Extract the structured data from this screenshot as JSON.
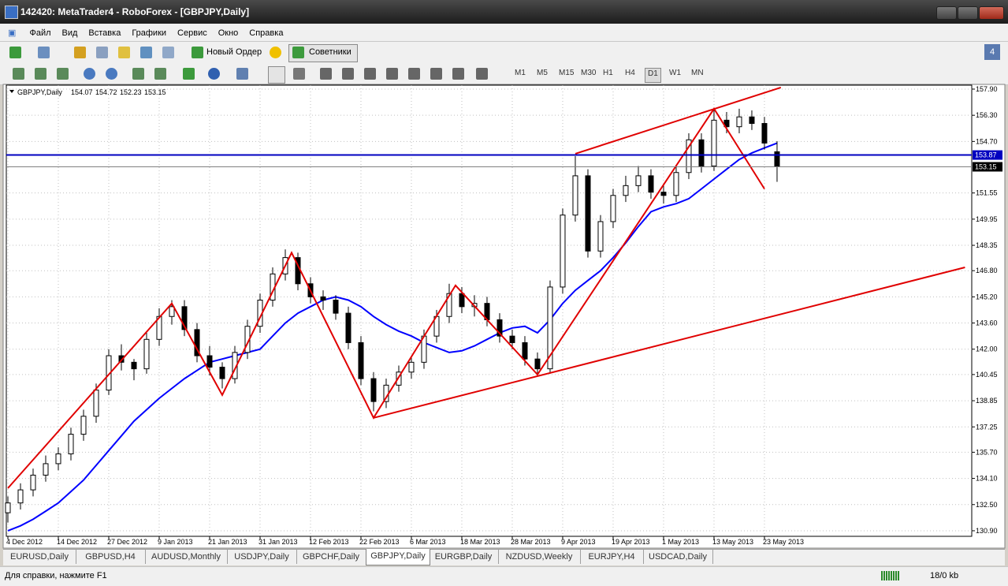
{
  "window": {
    "title": "142420: MetaTrader4 - RoboForex - [GBPJPY,Daily]"
  },
  "menu": [
    "Файл",
    "Вид",
    "Вставка",
    "Графики",
    "Сервис",
    "Окно",
    "Справка"
  ],
  "toolbar": {
    "new_order": "Новый Ордер",
    "experts": "Советники",
    "timeframes": [
      "M1",
      "M5",
      "M15",
      "M30",
      "H1",
      "H4",
      "D1",
      "W1",
      "MN"
    ],
    "active_timeframe": 6
  },
  "chart_data": {
    "type": "candlestick",
    "symbol": "GBPJPY,Daily",
    "categories": [
      "4 Dec 2012",
      null,
      null,
      null,
      "14 Dec 2012",
      null,
      null,
      null,
      "27 Dec 2012",
      null,
      null,
      null,
      "9 Jan 2013",
      null,
      null,
      null,
      "21 Jan 2013",
      null,
      null,
      null,
      "31 Jan 2013",
      null,
      null,
      null,
      "12 Feb 2013",
      null,
      null,
      null,
      "22 Feb 2013",
      null,
      null,
      null,
      "6 Mar 2013",
      null,
      null,
      null,
      "18 Mar 2013",
      null,
      null,
      null,
      "28 Mar 2013",
      null,
      null,
      null,
      "9 Apr 2013",
      null,
      null,
      null,
      "19 Apr 2013",
      null,
      null,
      null,
      "1 May 2013",
      null,
      null,
      null,
      "13 May 2013",
      null,
      null,
      null,
      "23 May 2013",
      null
    ],
    "open": [
      132.0,
      132.6,
      133.4,
      134.3,
      135.0,
      135.6,
      136.8,
      137.9,
      139.5,
      141.6,
      141.2,
      140.8,
      142.6,
      144.0,
      144.6,
      143.2,
      141.6,
      140.9,
      140.2,
      141.8,
      143.4,
      145.0,
      146.6,
      147.6,
      146.0,
      145.2,
      145.0,
      144.2,
      142.4,
      140.2,
      138.8,
      139.8,
      140.6,
      141.2,
      142.8,
      144.0,
      145.4,
      144.6,
      144.8,
      143.8,
      142.8,
      142.4,
      141.4,
      140.8,
      145.8,
      150.2,
      152.6,
      148.0,
      149.8,
      151.4,
      152.0,
      152.6,
      151.6,
      151.4,
      152.8,
      154.8,
      153.2,
      156.0,
      155.6,
      156.2,
      155.8,
      154.07
    ],
    "high": [
      133.0,
      133.8,
      134.7,
      135.5,
      136.0,
      137.2,
      138.3,
      139.9,
      142.0,
      142.3,
      141.4,
      143.0,
      144.5,
      145.0,
      145.0,
      143.6,
      142.2,
      141.2,
      142.2,
      143.8,
      145.4,
      147.0,
      148.1,
      147.9,
      146.4,
      145.6,
      145.3,
      144.6,
      142.8,
      140.6,
      140.2,
      141.0,
      141.6,
      143.2,
      144.4,
      146.0,
      145.8,
      145.3,
      145.2,
      144.2,
      143.2,
      142.8,
      141.8,
      146.2,
      150.6,
      153.8,
      153.0,
      150.2,
      151.8,
      152.6,
      153.2,
      153.0,
      152.0,
      153.2,
      155.2,
      155.2,
      156.6,
      156.5,
      156.7,
      156.6,
      156.2,
      154.72
    ],
    "low": [
      131.4,
      132.2,
      133.0,
      133.9,
      134.6,
      135.2,
      136.4,
      137.5,
      139.2,
      140.7,
      140.1,
      140.5,
      142.2,
      143.5,
      142.8,
      141.2,
      140.4,
      139.6,
      139.9,
      141.4,
      143.0,
      144.6,
      146.2,
      145.6,
      144.8,
      144.4,
      143.8,
      142.0,
      139.8,
      138.2,
      138.4,
      139.4,
      140.2,
      140.8,
      142.4,
      143.6,
      144.2,
      144.0,
      143.4,
      142.4,
      142.0,
      141.0,
      140.4,
      140.5,
      145.4,
      149.8,
      147.6,
      147.6,
      149.4,
      151.0,
      151.6,
      151.2,
      150.9,
      151.0,
      152.4,
      152.8,
      152.9,
      155.2,
      155.2,
      155.4,
      154.2,
      152.23
    ],
    "close": [
      132.6,
      133.4,
      134.3,
      135.0,
      135.6,
      136.8,
      137.9,
      139.5,
      141.6,
      141.2,
      140.8,
      142.6,
      144.0,
      144.6,
      143.2,
      141.6,
      140.9,
      140.2,
      141.8,
      143.4,
      145.0,
      146.6,
      147.6,
      146.0,
      145.2,
      145.0,
      144.2,
      142.4,
      140.2,
      138.8,
      139.8,
      140.6,
      141.2,
      142.8,
      144.0,
      145.4,
      144.6,
      144.8,
      143.8,
      142.8,
      142.4,
      141.4,
      140.8,
      145.8,
      150.2,
      152.6,
      148.0,
      149.8,
      151.4,
      152.0,
      152.6,
      151.6,
      151.4,
      152.8,
      154.8,
      153.2,
      156.0,
      155.6,
      156.2,
      155.8,
      154.6,
      153.15
    ],
    "ma": {
      "color": "#0000ff",
      "values": [
        130.9,
        131.2,
        131.6,
        132.1,
        132.6,
        133.3,
        134.0,
        134.9,
        135.8,
        136.7,
        137.6,
        138.3,
        139.0,
        139.6,
        140.2,
        140.7,
        141.2,
        141.4,
        141.6,
        141.8,
        142.0,
        142.8,
        143.6,
        144.2,
        144.6,
        145.0,
        145.2,
        145.0,
        144.6,
        144.0,
        143.5,
        143.1,
        142.8,
        142.4,
        142.1,
        141.8,
        141.9,
        142.2,
        142.6,
        143.0,
        143.3,
        143.4,
        143.0,
        143.8,
        144.8,
        145.6,
        146.2,
        146.8,
        147.6,
        148.5,
        149.5,
        150.4,
        150.7,
        150.9,
        151.2,
        151.8,
        152.4,
        153.0,
        153.6,
        154.0,
        154.3,
        154.6
      ]
    },
    "zigzag": {
      "color": "#e00000",
      "x": [
        0,
        13,
        17,
        22.5,
        29,
        35.5,
        42,
        56,
        60
      ],
      "values": [
        133.5,
        144.8,
        139.2,
        147.9,
        137.8,
        145.9,
        140.45,
        156.7,
        151.8
      ]
    },
    "trendlines": [
      {
        "color": "#e00000",
        "x": [
          29,
          75.9
        ],
        "values": [
          137.8,
          147.0
        ]
      },
      {
        "color": "#e00000",
        "x": [
          45,
          61.3
        ],
        "values": [
          153.95,
          158.0
        ]
      }
    ],
    "hline": {
      "value": 153.87,
      "color": "#0000c0"
    },
    "xlim": [
      -0.125,
      76.44
    ],
    "ylim": [
      130.56,
      158.14
    ],
    "yticks": [
      {
        "value": 157.9,
        "label": "157.90"
      },
      {
        "value": 156.3,
        "label": "156.30"
      },
      {
        "value": 154.7,
        "label": "154.70"
      },
      151.55,
      149.95,
      148.35,
      {
        "value": 146.8,
        "label": "146.80"
      },
      {
        "value": 145.2,
        "label": "145.20"
      },
      {
        "value": 143.6,
        "label": "143.60"
      },
      {
        "value": 142,
        "label": "142.00"
      },
      140.45,
      138.85,
      137.25,
      {
        "value": 135.7,
        "label": "135.70"
      },
      {
        "value": 134.1,
        "label": "134.10"
      },
      {
        "value": 132.5,
        "label": "132.50"
      },
      {
        "value": 130.9,
        "label": "130.90"
      }
    ],
    "grid": true
  },
  "tabs": [
    "EURUSD,Daily",
    "GBPUSD,H4",
    "AUDUSD,Monthly",
    "USDJPY,Daily",
    "GBPCHF,Daily",
    "GBPJPY,Daily",
    "EURGBP,Daily",
    "NZDUSD,Weekly",
    "EURJPY,H4",
    "USDCAD,Daily"
  ],
  "active_tab": 5,
  "status": {
    "help": "Для справки, нажмите F1",
    "traffic": "18/0 kb"
  }
}
